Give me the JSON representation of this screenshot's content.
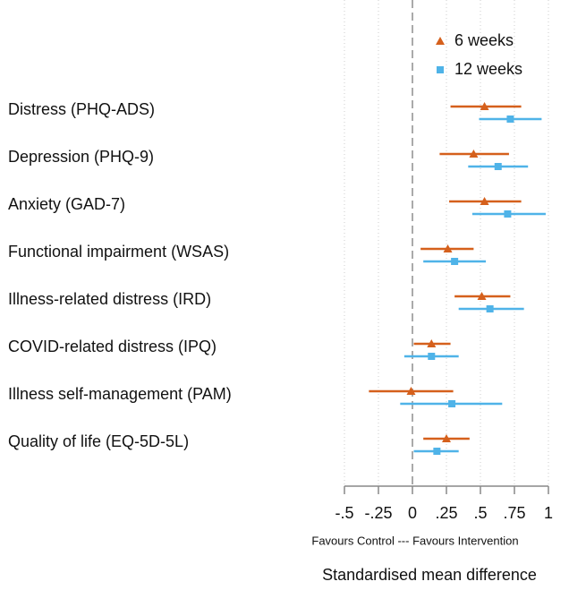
{
  "chart_data": {
    "type": "forest",
    "categories": [
      "Distress (PHQ-ADS)",
      "Depression (PHQ-9)",
      "Anxiety (GAD-7)",
      "Functional impairment (WSAS)",
      "Illness-related distress (IRD)",
      "COVID-related distress (IPQ)",
      "Illness self-management (PAM)",
      "Quality of life (EQ-5D-5L)"
    ],
    "series": [
      {
        "name": "6 weeks",
        "color": "#d5601c",
        "marker": "triangle",
        "values": [
          0.53,
          0.45,
          0.53,
          0.26,
          0.51,
          0.14,
          -0.01,
          0.25
        ],
        "lower": [
          0.28,
          0.2,
          0.27,
          0.06,
          0.31,
          0.01,
          -0.32,
          0.08
        ],
        "upper": [
          0.8,
          0.71,
          0.8,
          0.45,
          0.72,
          0.28,
          0.3,
          0.42
        ]
      },
      {
        "name": "12 weeks",
        "color": "#4fb3e8",
        "marker": "square",
        "values": [
          0.72,
          0.63,
          0.7,
          0.31,
          0.57,
          0.14,
          0.29,
          0.18
        ],
        "lower": [
          0.49,
          0.41,
          0.44,
          0.08,
          0.34,
          -0.06,
          -0.09,
          0.01
        ],
        "upper": [
          0.95,
          0.85,
          0.98,
          0.54,
          0.82,
          0.34,
          0.66,
          0.34
        ]
      }
    ],
    "xlim": [
      -0.5,
      1
    ],
    "xticks": [
      {
        "value": -0.5,
        "label": "-.5"
      },
      {
        "value": -0.25,
        "label": "-.25"
      },
      0,
      {
        "value": 0.25,
        "label": ".25"
      },
      {
        "value": 0.5,
        "label": ".5"
      },
      {
        "value": 0.75,
        "label": ".75"
      },
      1
    ],
    "grid": true,
    "subtitle": "Favours Control --- Favours Intervention",
    "x_label": "Standardised mean difference",
    "legend": "top-right"
  }
}
